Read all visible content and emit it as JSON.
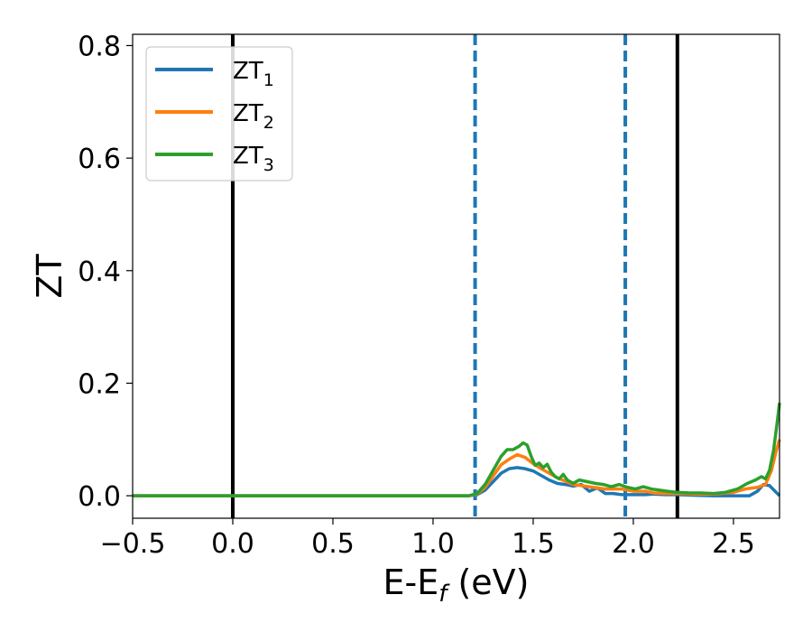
{
  "chart_data": {
    "type": "line",
    "title": "",
    "xlabel": {
      "main": "E-E",
      "sub": "f",
      "suffix": " (eV)"
    },
    "ylabel": "ZT",
    "xlim": [
      -0.5,
      2.73
    ],
    "ylim": [
      -0.04,
      0.82
    ],
    "xticks": [
      -0.5,
      0.0,
      0.5,
      1.0,
      1.5,
      2.0,
      2.5
    ],
    "xtick_labels": [
      "−0.5",
      "0.0",
      "0.5",
      "1.0",
      "1.5",
      "2.0",
      "2.5"
    ],
    "yticks": [
      0.0,
      0.2,
      0.4,
      0.6,
      0.8
    ],
    "ytick_labels": [
      "0.0",
      "0.2",
      "0.4",
      "0.6",
      "0.8"
    ],
    "grid": false,
    "legend_position": "top-left",
    "vlines": [
      {
        "x": 0.0,
        "style": "solid",
        "color": "#000000"
      },
      {
        "x": 1.21,
        "style": "dashed",
        "color": "#1f77b4"
      },
      {
        "x": 1.96,
        "style": "dashed",
        "color": "#1f77b4"
      },
      {
        "x": 2.22,
        "style": "solid",
        "color": "#000000"
      }
    ],
    "series": [
      {
        "name": "ZT",
        "subscript": "1",
        "color": "#1f77b4",
        "points": [
          [
            -0.5,
            0
          ],
          [
            1.18,
            0
          ],
          [
            1.22,
            0.002
          ],
          [
            1.26,
            0.01
          ],
          [
            1.3,
            0.025
          ],
          [
            1.34,
            0.04
          ],
          [
            1.38,
            0.048
          ],
          [
            1.42,
            0.05
          ],
          [
            1.46,
            0.048
          ],
          [
            1.5,
            0.044
          ],
          [
            1.54,
            0.036
          ],
          [
            1.58,
            0.028
          ],
          [
            1.62,
            0.022
          ],
          [
            1.66,
            0.02
          ],
          [
            1.7,
            0.017
          ],
          [
            1.74,
            0.02
          ],
          [
            1.78,
            0.008
          ],
          [
            1.82,
            0.014
          ],
          [
            1.86,
            0.004
          ],
          [
            1.9,
            0.004
          ],
          [
            1.94,
            0.002
          ],
          [
            2.0,
            0.002
          ],
          [
            2.06,
            0.002
          ],
          [
            2.1,
            0.003
          ],
          [
            2.16,
            0.002
          ],
          [
            2.22,
            0.002
          ],
          [
            2.3,
            0.001
          ],
          [
            2.4,
            0.0
          ],
          [
            2.5,
            0.0
          ],
          [
            2.58,
            0.0
          ],
          [
            2.62,
            0.008
          ],
          [
            2.65,
            0.02
          ],
          [
            2.68,
            0.018
          ],
          [
            2.73,
            0.0
          ]
        ]
      },
      {
        "name": "ZT",
        "subscript": "2",
        "color": "#ff7f0e",
        "points": [
          [
            -0.5,
            0
          ],
          [
            1.18,
            0
          ],
          [
            1.22,
            0.003
          ],
          [
            1.26,
            0.015
          ],
          [
            1.3,
            0.035
          ],
          [
            1.34,
            0.055
          ],
          [
            1.38,
            0.065
          ],
          [
            1.42,
            0.073
          ],
          [
            1.46,
            0.068
          ],
          [
            1.5,
            0.057
          ],
          [
            1.54,
            0.048
          ],
          [
            1.58,
            0.04
          ],
          [
            1.62,
            0.032
          ],
          [
            1.66,
            0.026
          ],
          [
            1.7,
            0.02
          ],
          [
            1.74,
            0.018
          ],
          [
            1.78,
            0.016
          ],
          [
            1.82,
            0.014
          ],
          [
            1.86,
            0.012
          ],
          [
            1.9,
            0.012
          ],
          [
            1.94,
            0.012
          ],
          [
            2.0,
            0.008
          ],
          [
            2.06,
            0.008
          ],
          [
            2.1,
            0.005
          ],
          [
            2.16,
            0.004
          ],
          [
            2.22,
            0.004
          ],
          [
            2.3,
            0.003
          ],
          [
            2.4,
            0.003
          ],
          [
            2.5,
            0.006
          ],
          [
            2.56,
            0.012
          ],
          [
            2.62,
            0.015
          ],
          [
            2.66,
            0.02
          ],
          [
            2.69,
            0.045
          ],
          [
            2.71,
            0.075
          ],
          [
            2.73,
            0.1
          ]
        ]
      },
      {
        "name": "ZT",
        "subscript": "3",
        "color": "#2ca02c",
        "points": [
          [
            -0.5,
            0
          ],
          [
            1.18,
            0
          ],
          [
            1.22,
            0.004
          ],
          [
            1.26,
            0.02
          ],
          [
            1.3,
            0.045
          ],
          [
            1.34,
            0.07
          ],
          [
            1.37,
            0.082
          ],
          [
            1.4,
            0.082
          ],
          [
            1.43,
            0.088
          ],
          [
            1.45,
            0.094
          ],
          [
            1.47,
            0.09
          ],
          [
            1.49,
            0.07
          ],
          [
            1.51,
            0.054
          ],
          [
            1.53,
            0.058
          ],
          [
            1.55,
            0.05
          ],
          [
            1.57,
            0.056
          ],
          [
            1.59,
            0.042
          ],
          [
            1.61,
            0.034
          ],
          [
            1.63,
            0.03
          ],
          [
            1.65,
            0.038
          ],
          [
            1.67,
            0.028
          ],
          [
            1.7,
            0.022
          ],
          [
            1.73,
            0.028
          ],
          [
            1.77,
            0.025
          ],
          [
            1.81,
            0.022
          ],
          [
            1.85,
            0.02
          ],
          [
            1.89,
            0.016
          ],
          [
            1.93,
            0.02
          ],
          [
            1.97,
            0.015
          ],
          [
            2.01,
            0.012
          ],
          [
            2.05,
            0.016
          ],
          [
            2.09,
            0.012
          ],
          [
            2.13,
            0.01
          ],
          [
            2.17,
            0.008
          ],
          [
            2.22,
            0.006
          ],
          [
            2.28,
            0.005
          ],
          [
            2.34,
            0.005
          ],
          [
            2.4,
            0.004
          ],
          [
            2.46,
            0.006
          ],
          [
            2.52,
            0.012
          ],
          [
            2.57,
            0.022
          ],
          [
            2.61,
            0.028
          ],
          [
            2.64,
            0.034
          ],
          [
            2.66,
            0.03
          ],
          [
            2.68,
            0.045
          ],
          [
            2.7,
            0.08
          ],
          [
            2.72,
            0.135
          ],
          [
            2.73,
            0.165
          ]
        ]
      }
    ]
  }
}
